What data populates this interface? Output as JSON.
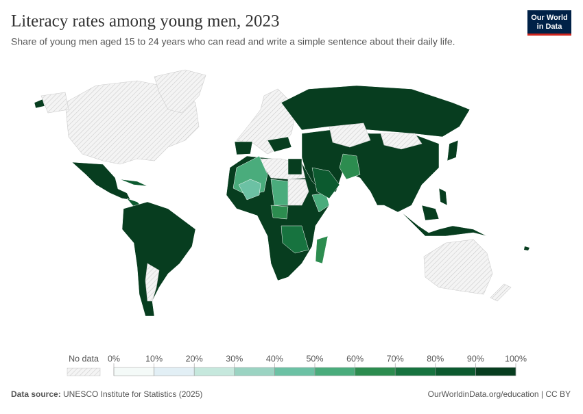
{
  "header": {
    "title": "Literacy rates among young men, 2023",
    "subtitle": "Share of young men aged 15 to 24 years who can read and write a simple sentence about their daily life.",
    "logo_line1": "Our World",
    "logo_line2": "in Data"
  },
  "legend": {
    "no_data_label": "No data",
    "ticks": [
      {
        "value": 0,
        "label": "0%"
      },
      {
        "value": 10,
        "label": "10%"
      },
      {
        "value": 20,
        "label": "20%"
      },
      {
        "value": 30,
        "label": "30%"
      },
      {
        "value": 40,
        "label": "40%"
      },
      {
        "value": 50,
        "label": "50%"
      },
      {
        "value": 60,
        "label": "60%"
      },
      {
        "value": 70,
        "label": "70%"
      },
      {
        "value": 80,
        "label": "80%"
      },
      {
        "value": 90,
        "label": "90%"
      },
      {
        "value": 100,
        "label": "100%"
      }
    ],
    "colors": [
      "#f4faf8",
      "#e2eff5",
      "#c6e8dd",
      "#9bd3c2",
      "#6cc1a4",
      "#4aac7c",
      "#2c8c4f",
      "#17733f",
      "#0c5a2f",
      "#073d1f"
    ]
  },
  "footer": {
    "source_label": "Data source:",
    "source": "UNESCO Institute for Statistics (2025)",
    "url": "OurWorldinData.org/education | CC BY"
  }
}
